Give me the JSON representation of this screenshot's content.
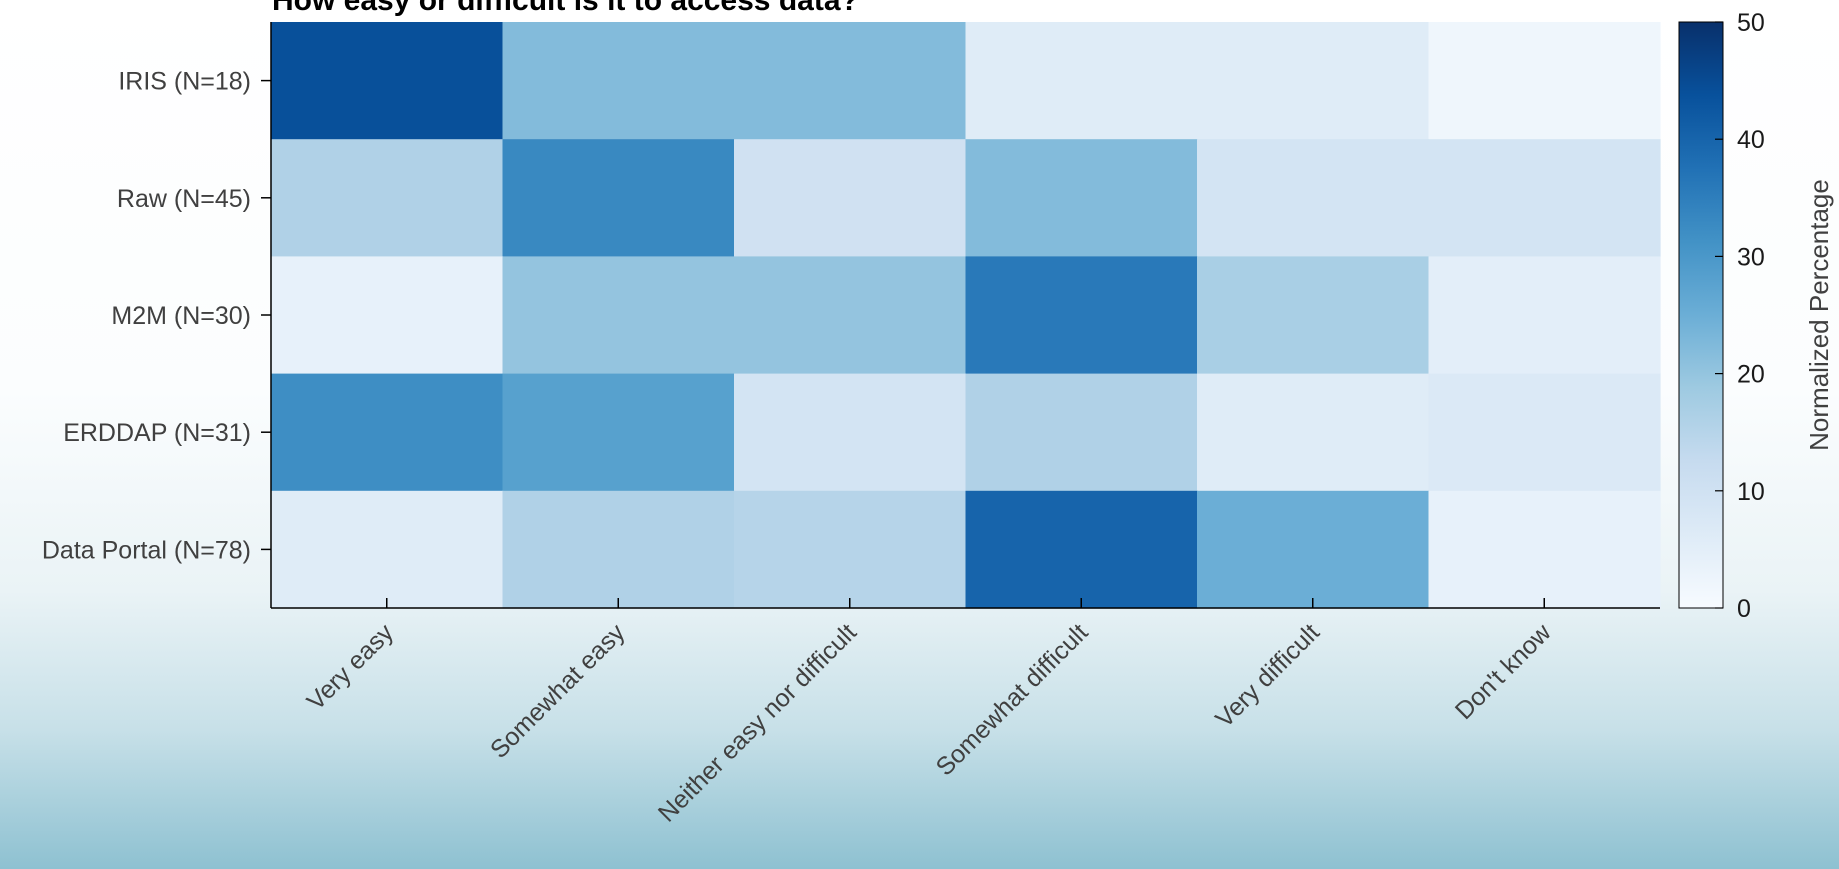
{
  "chart_data": {
    "type": "heatmap",
    "title": "How easy or difficult is it to access data?",
    "x_categories": [
      "Very easy",
      "Somewhat easy",
      "Neither easy nor difficult",
      "Somewhat difficult",
      "Very difficult",
      "Don't know"
    ],
    "y_categories": [
      "IRIS (N=18)",
      "Raw (N=45)",
      "M2M (N=30)",
      "ERDDAP (N=31)",
      "Data Portal (N=78)"
    ],
    "values": [
      [
        44,
        22,
        22,
        6,
        6,
        2
      ],
      [
        16,
        33,
        10,
        22,
        9,
        9
      ],
      [
        4,
        20,
        20,
        36,
        17,
        5
      ],
      [
        32,
        28,
        9,
        16,
        6,
        7
      ],
      [
        6,
        16,
        15,
        40,
        25,
        4
      ]
    ],
    "colorbar": {
      "label": "Normalized Percentage",
      "range": [
        0,
        50
      ],
      "ticks": [
        0,
        10,
        20,
        30,
        40,
        50
      ],
      "colormap": "Blues"
    }
  }
}
